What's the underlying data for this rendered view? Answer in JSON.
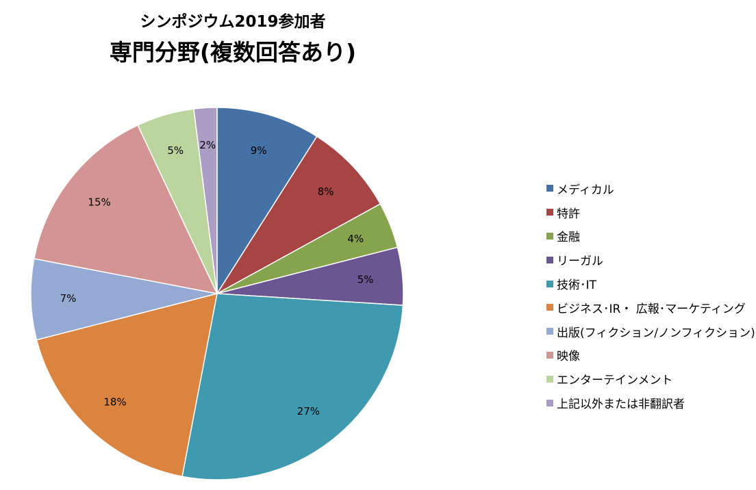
{
  "chart_data": {
    "type": "pie",
    "title": "シンポジウム2019参加者",
    "subtitle": "専門分野(複数回答あり)",
    "legend_position": "right",
    "start_angle": "12 o'clock",
    "direction": "clockwise",
    "slices": [
      {
        "label": "メディカル",
        "value": 9,
        "display": "9%",
        "color": "#4471a6"
      },
      {
        "label": "特許",
        "value": 8,
        "display": "8%",
        "color": "#a64544"
      },
      {
        "label": "金融",
        "value": 4,
        "display": "4%",
        "color": "#86a34d"
      },
      {
        "label": "リーガル",
        "value": 5,
        "display": "5%",
        "color": "#6c5593"
      },
      {
        "label": "技術･IT",
        "value": 27,
        "display": "27%",
        "color": "#3f9ab0"
      },
      {
        "label": "ビジネス･IR・ 広報･マーケティング",
        "value": 18,
        "display": "18%",
        "color": "#db8440"
      },
      {
        "label": "出版(フィクション/ノンフィクション)",
        "value": 7,
        "display": "7%",
        "color": "#94aad3"
      },
      {
        "label": "映像",
        "value": 15,
        "display": "15%",
        "color": "#d29593"
      },
      {
        "label": "エンターテインメント",
        "value": 5,
        "display": "5%",
        "color": "#bcd49e"
      },
      {
        "label": "上記以外または非翻訳者",
        "value": 2,
        "display": "2%",
        "color": "#ab9dc4"
      }
    ]
  }
}
